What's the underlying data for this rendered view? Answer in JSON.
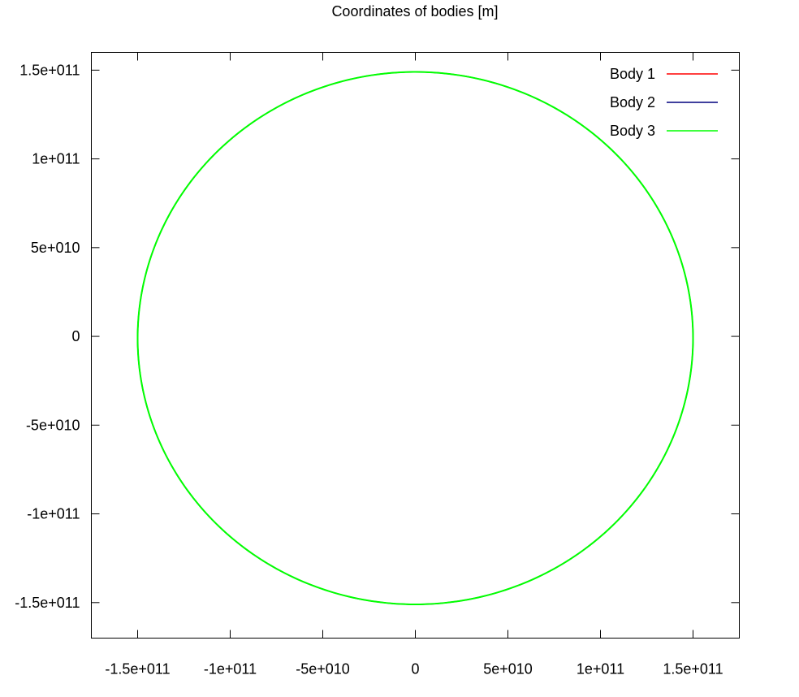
{
  "chart_data": {
    "type": "line",
    "title": "Coordinates of bodies [m]",
    "xlabel": "",
    "ylabel": "",
    "xlim": [
      -175000000000.0,
      175000000000.0
    ],
    "ylim": [
      -170000000000.0,
      160000000000.0
    ],
    "xticks": [
      {
        "value": -150000000000.0,
        "label": "-1.5e+011"
      },
      {
        "value": -100000000000.0,
        "label": "-1e+011"
      },
      {
        "value": -50000000000.0,
        "label": "-5e+010"
      },
      {
        "value": 0,
        "label": "0"
      },
      {
        "value": 50000000000.0,
        "label": "5e+010"
      },
      {
        "value": 100000000000.0,
        "label": "1e+011"
      },
      {
        "value": 150000000000.0,
        "label": "1.5e+011"
      }
    ],
    "yticks": [
      {
        "value": 150000000000.0,
        "label": "1.5e+011"
      },
      {
        "value": 100000000000.0,
        "label": "1e+011"
      },
      {
        "value": 50000000000.0,
        "label": "5e+010"
      },
      {
        "value": 0,
        "label": "0"
      },
      {
        "value": -50000000000.0,
        "label": "-5e+010"
      },
      {
        "value": -100000000000.0,
        "label": "-1e+011"
      },
      {
        "value": -150000000000.0,
        "label": "-1.5e+011"
      }
    ],
    "grid": false,
    "legend_position": "top-right",
    "series": [
      {
        "name": "Body 1",
        "color": "#ff0000",
        "x": [
          0,
          100000000000.0,
          150000000000.0,
          100000000000.0,
          0,
          -100000000000.0,
          -150000000000.0,
          -100000000000.0,
          0
        ],
        "y": [
          149000000000.0,
          112000000000.0,
          0,
          -112000000000.0,
          -151000000000.0,
          -112000000000.0,
          0,
          112000000000.0,
          149000000000.0
        ]
      },
      {
        "name": "Body 2",
        "color": "#00007f",
        "x": [
          0,
          100000000000.0,
          150000000000.0,
          100000000000.0,
          0,
          -100000000000.0,
          -150000000000.0,
          -100000000000.0,
          0
        ],
        "y": [
          149000000000.0,
          112000000000.0,
          0,
          -112000000000.0,
          -151000000000.0,
          -112000000000.0,
          0,
          112000000000.0,
          149000000000.0
        ]
      },
      {
        "name": "Body 3",
        "color": "#00ff00",
        "x": [
          0,
          100000000000.0,
          150000000000.0,
          100000000000.0,
          0,
          -100000000000.0,
          -150000000000.0,
          -100000000000.0,
          0
        ],
        "y": [
          149000000000.0,
          112000000000.0,
          0,
          -112000000000.0,
          -151000000000.0,
          -112000000000.0,
          0,
          112000000000.0,
          149000000000.0
        ]
      }
    ]
  }
}
